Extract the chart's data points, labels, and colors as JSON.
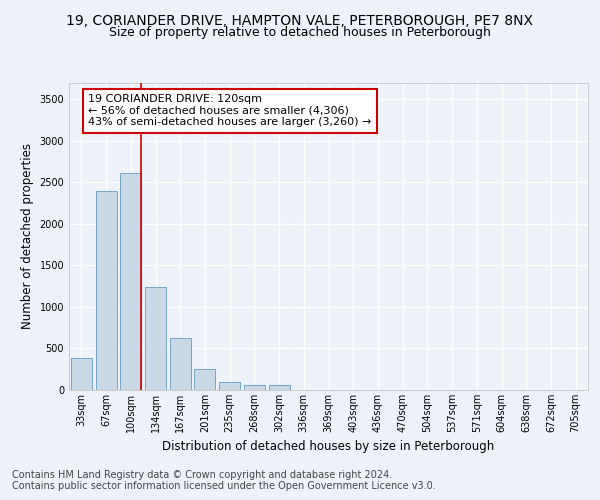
{
  "title_line1": "19, CORIANDER DRIVE, HAMPTON VALE, PETERBOROUGH, PE7 8NX",
  "title_line2": "Size of property relative to detached houses in Peterborough",
  "xlabel": "Distribution of detached houses by size in Peterborough",
  "ylabel": "Number of detached properties",
  "categories": [
    "33sqm",
    "67sqm",
    "100sqm",
    "134sqm",
    "167sqm",
    "201sqm",
    "235sqm",
    "268sqm",
    "302sqm",
    "336sqm",
    "369sqm",
    "403sqm",
    "436sqm",
    "470sqm",
    "504sqm",
    "537sqm",
    "571sqm",
    "604sqm",
    "638sqm",
    "672sqm",
    "705sqm"
  ],
  "values": [
    390,
    2400,
    2610,
    1240,
    620,
    250,
    100,
    65,
    60,
    0,
    0,
    0,
    0,
    0,
    0,
    0,
    0,
    0,
    0,
    0,
    0
  ],
  "bar_color": "#c9d9e8",
  "bar_edge_color": "#6699bb",
  "vline_color": "#cc0000",
  "vline_pos": 2.43,
  "annotation_text": "19 CORIANDER DRIVE: 120sqm\n← 56% of detached houses are smaller (4,306)\n43% of semi-detached houses are larger (3,260) →",
  "ylim": [
    0,
    3700
  ],
  "yticks": [
    0,
    500,
    1000,
    1500,
    2000,
    2500,
    3000,
    3500
  ],
  "bg_color": "#edf2f9",
  "plot_bg_color": "#edf2f9",
  "grid_color": "#ffffff",
  "footer_line1": "Contains HM Land Registry data © Crown copyright and database right 2024.",
  "footer_line2": "Contains public sector information licensed under the Open Government Licence v3.0.",
  "title_fontsize": 10,
  "subtitle_fontsize": 9,
  "axis_label_fontsize": 8.5,
  "tick_fontsize": 7,
  "annotation_fontsize": 8,
  "footer_fontsize": 7
}
